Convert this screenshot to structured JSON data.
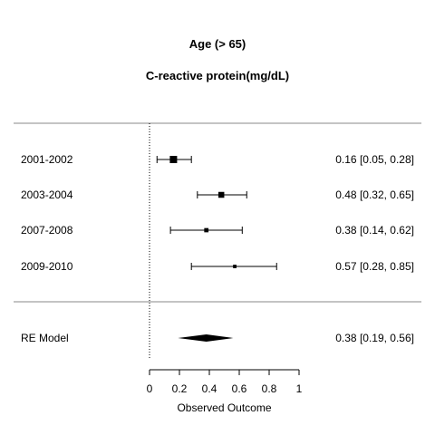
{
  "chart_data": {
    "type": "forest",
    "title": "Age (> 65)",
    "subtitle": "C-reactive protein(mg/dL)",
    "xlabel": "Observed Outcome",
    "xlim": [
      0,
      1
    ],
    "xticks": [
      "0",
      "0.2",
      "0.4",
      "0.6",
      "0.8",
      "1"
    ],
    "reference_line": 0,
    "studies": [
      {
        "label": "2001-2002",
        "estimate": 0.16,
        "lower": 0.05,
        "upper": 0.28,
        "text": "0.16 [0.05, 0.28]",
        "weight": 1.0
      },
      {
        "label": "2003-2004",
        "estimate": 0.48,
        "lower": 0.32,
        "upper": 0.65,
        "text": "0.48 [0.32, 0.65]",
        "weight": 0.75
      },
      {
        "label": "2007-2008",
        "estimate": 0.38,
        "lower": 0.14,
        "upper": 0.62,
        "text": "0.38 [0.14, 0.62]",
        "weight": 0.45
      },
      {
        "label": "2009-2010",
        "estimate": 0.57,
        "lower": 0.28,
        "upper": 0.85,
        "text": "0.57 [0.28, 0.85]",
        "weight": 0.3
      }
    ],
    "summary": {
      "label": "RE Model",
      "estimate": 0.38,
      "lower": 0.19,
      "upper": 0.56,
      "text": "0.38 [0.19, 0.56]"
    }
  }
}
